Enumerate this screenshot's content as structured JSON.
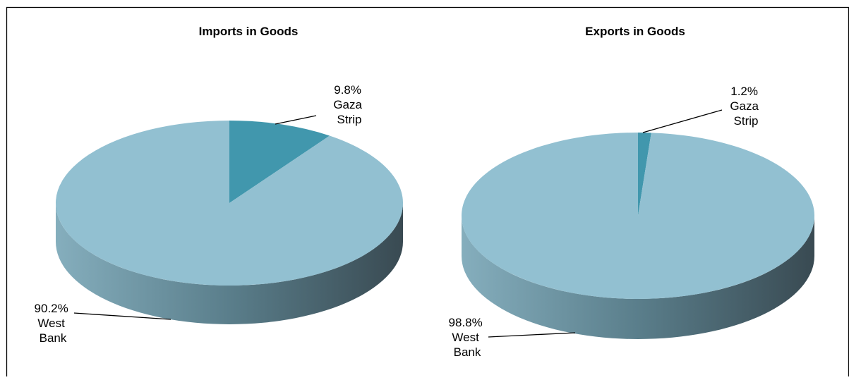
{
  "chart_data": [
    {
      "type": "pie",
      "title": "Imports in Goods",
      "categories": [
        "Gaza Strip",
        "West Bank"
      ],
      "values": [
        9.8,
        90.2
      ],
      "unit": "%",
      "labels": [
        {
          "value": "9.8%",
          "line1": "Gaza",
          "line2": "Strip"
        },
        {
          "value": "90.2%",
          "line1": "West",
          "line2": "Bank"
        }
      ],
      "colors": [
        "#4197ad",
        "#92c0d1"
      ],
      "legend": "none",
      "style": "3d"
    },
    {
      "type": "pie",
      "title": "Exports in Goods",
      "categories": [
        "Gaza Strip",
        "West Bank"
      ],
      "values": [
        1.2,
        98.8
      ],
      "unit": "%",
      "labels": [
        {
          "value": "1.2%",
          "line1": "Gaza",
          "line2": "Strip"
        },
        {
          "value": "98.8%",
          "line1": "West",
          "line2": "Bank"
        }
      ],
      "colors": [
        "#4197ad",
        "#92c0d1"
      ],
      "legend": "none",
      "style": "3d"
    }
  ]
}
